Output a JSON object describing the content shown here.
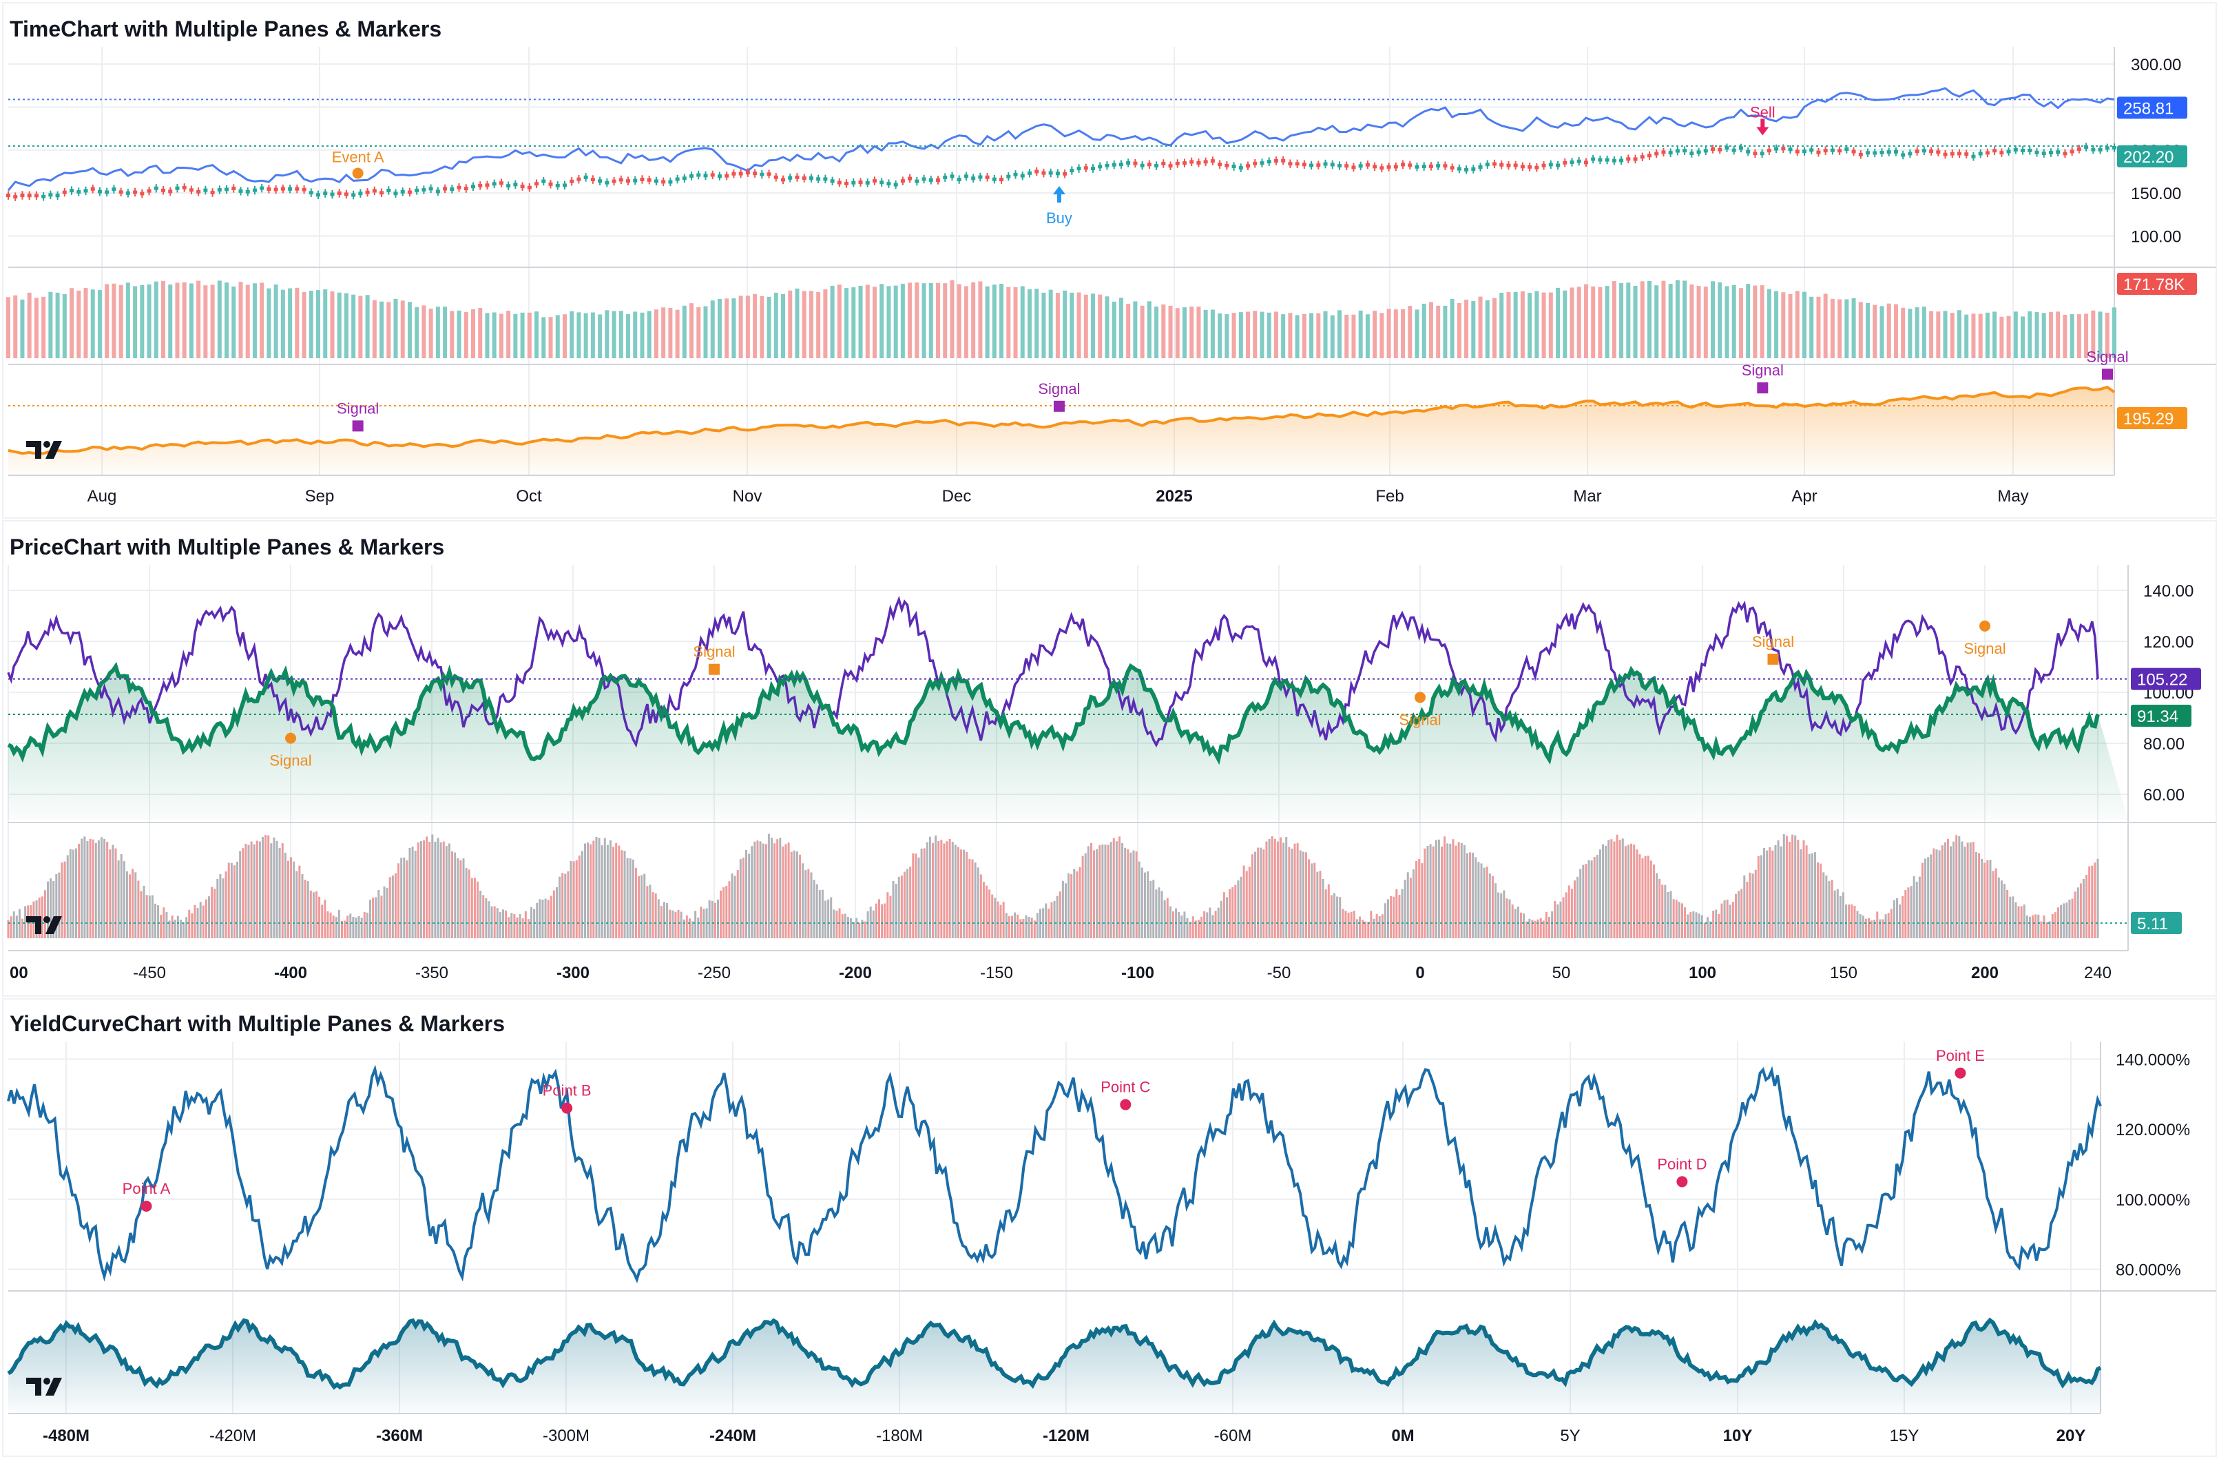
{
  "colors": {
    "grid": "#eceef2",
    "axis_text": "#131722",
    "border": "#d1d4dc",
    "up": "#26a69a",
    "down": "#ef5350"
  },
  "chart_data": [
    {
      "title": "TimeChart with Multiple Panes & Markers",
      "type": "line",
      "x_labels": [
        "Aug",
        "Sep",
        "Oct",
        "Nov",
        "Dec",
        "2025",
        "Feb",
        "Mar",
        "Apr",
        "May"
      ],
      "bold_x_labels": [
        "2025"
      ],
      "panes": [
        {
          "id": "price",
          "y_ticks": [
            "300.00",
            "250.00",
            "200.00",
            "150.00",
            "100.00"
          ],
          "ylim": [
            70,
            320
          ],
          "series": [
            {
              "kind": "line",
              "color": "#4d7cf2",
              "start": 160,
              "end": 262,
              "last_label": "258.81",
              "last_value": 258.81
            },
            {
              "kind": "candles",
              "up_color": "#26a69a",
              "down_color": "#ef5350",
              "start": 145,
              "end": 204,
              "last_label": "202.20",
              "last_value": 202.2
            }
          ],
          "markers": [
            {
              "label": "Event A",
              "x_frac": 0.166,
              "value": 173,
              "shape": "circle",
              "color": "#f08b1e",
              "position": "above"
            },
            {
              "label": "Buy",
              "x_frac": 0.499,
              "value": 150,
              "shape": "arrow-up",
              "color": "#2196f3",
              "position": "below"
            },
            {
              "label": "Sell",
              "x_frac": 0.833,
              "value": 225,
              "shape": "arrow-down",
              "color": "#e91e63",
              "position": "above"
            }
          ]
        },
        {
          "id": "volume",
          "y_ticks": [],
          "series": [
            {
              "kind": "volume",
              "last_label": "171.78K",
              "last_value": 171780,
              "last_color": "#ef5350"
            }
          ]
        },
        {
          "id": "indicator",
          "y_ticks": [],
          "ylim": [
            155,
            205
          ],
          "series": [
            {
              "kind": "area",
              "color": "#f7931a",
              "start": 160,
              "end": 195.29,
              "last_label": "195.29",
              "last_value": 195.29
            }
          ],
          "markers": [
            {
              "label": "Signal",
              "x_frac": 0.166,
              "shape": "square",
              "color": "#9c27b0"
            },
            {
              "label": "Signal",
              "x_frac": 0.499,
              "shape": "square",
              "color": "#9c27b0"
            },
            {
              "label": "Signal",
              "x_frac": 0.833,
              "shape": "square",
              "color": "#9c27b0"
            },
            {
              "label": "Signal",
              "x_frac": 1.0,
              "shape": "square",
              "color": "#9c27b0"
            }
          ]
        }
      ]
    },
    {
      "title": "PriceChart with Multiple Panes & Markers",
      "type": "line",
      "x_labels": [
        "00",
        "-450",
        "-400",
        "-350",
        "-300",
        "-250",
        "-200",
        "-150",
        "-100",
        "-50",
        "0",
        "50",
        "100",
        "150",
        "200",
        "240"
      ],
      "bold_x_labels": [
        "00",
        "-400",
        "-300",
        "-200",
        "-100",
        "0",
        "100",
        "200"
      ],
      "panes": [
        {
          "id": "price",
          "y_ticks": [
            "140.00",
            "120.00",
            "100.00",
            "80.00",
            "60.00"
          ],
          "ylim": [
            50,
            150
          ],
          "series": [
            {
              "kind": "line",
              "color": "#5b2bb5",
              "last_label": "105.22",
              "last_value": 105.22
            },
            {
              "kind": "area",
              "color": "#0f8a5f",
              "last_label": "91.34",
              "last_value": 91.34
            }
          ],
          "markers": [
            {
              "label": "Signal",
              "x": -400,
              "value": 82,
              "shape": "circle",
              "color": "#f08b1e",
              "position": "below"
            },
            {
              "label": "Signal",
              "x": -250,
              "value": 109,
              "shape": "square",
              "color": "#f08b1e",
              "position": "above"
            },
            {
              "label": "Signal",
              "x": 0,
              "value": 98,
              "shape": "circle",
              "color": "#f08b1e",
              "position": "below"
            },
            {
              "label": "Signal",
              "x": 125,
              "value": 113,
              "shape": "square",
              "color": "#f08b1e",
              "position": "above"
            },
            {
              "label": "Signal",
              "x": 200,
              "value": 126,
              "shape": "circle",
              "color": "#f08b1e",
              "position": "below"
            }
          ]
        },
        {
          "id": "histogram",
          "y_ticks": [],
          "series": [
            {
              "kind": "histogram",
              "last_label": "5.11",
              "last_value": 5.11,
              "last_color": "#26a69a"
            }
          ]
        }
      ]
    },
    {
      "title": "YieldCurveChart with Multiple Panes & Markers",
      "type": "line",
      "x_labels": [
        "-480M",
        "-420M",
        "-360M",
        "-300M",
        "-240M",
        "-180M",
        "-120M",
        "-60M",
        "0M",
        "5Y",
        "10Y",
        "15Y",
        "20Y"
      ],
      "bold_x_labels": [
        "-480M",
        "-360M",
        "-240M",
        "-120M",
        "0M",
        "10Y",
        "20Y"
      ],
      "panes": [
        {
          "id": "yield",
          "y_ticks": [
            "140.000%",
            "120.000%",
            "100.000%",
            "80.000%"
          ],
          "ylim": [
            75,
            145
          ],
          "series": [
            {
              "kind": "line",
              "color": "#1b6ca8"
            }
          ],
          "markers": [
            {
              "label": "Point A",
              "x_frac": 0.066,
              "value": 98,
              "shape": "circle",
              "color": "#e0245e"
            },
            {
              "label": "Point B",
              "x_frac": 0.267,
              "value": 126,
              "shape": "circle",
              "color": "#e0245e"
            },
            {
              "label": "Point C",
              "x_frac": 0.534,
              "value": 127,
              "shape": "circle",
              "color": "#e0245e"
            },
            {
              "label": "Point D",
              "x_frac": 0.8,
              "value": 105,
              "shape": "circle",
              "color": "#e0245e"
            },
            {
              "label": "Point E",
              "x_frac": 0.933,
              "value": 136,
              "shape": "circle",
              "color": "#e0245e"
            }
          ]
        },
        {
          "id": "area",
          "y_ticks": [],
          "series": [
            {
              "kind": "area",
              "color": "#0f6e8c"
            }
          ]
        }
      ]
    }
  ]
}
